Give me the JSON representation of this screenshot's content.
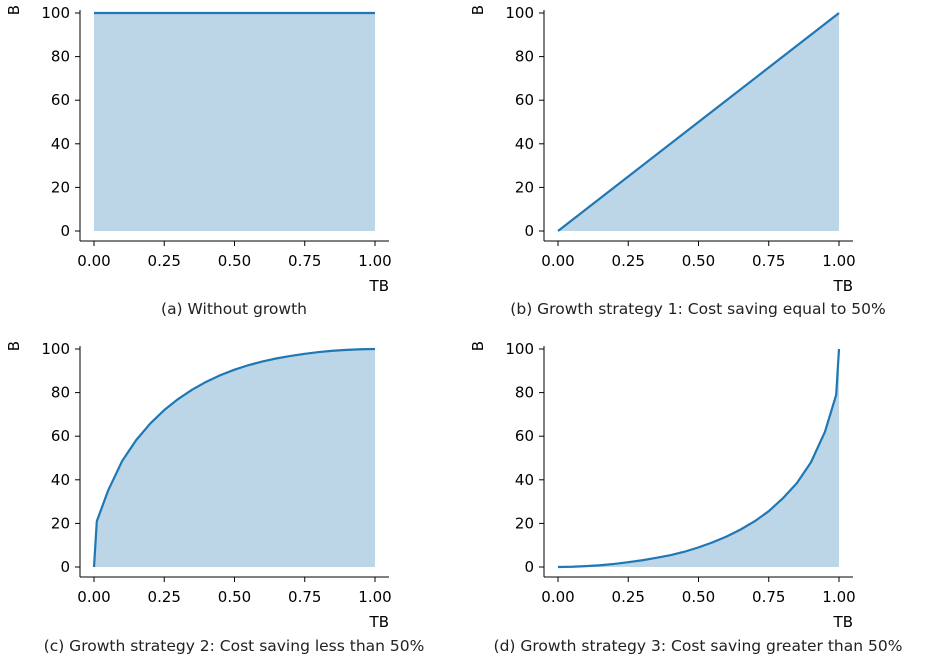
{
  "chart_data": [
    {
      "type": "area",
      "caption": "(a) Without growth",
      "xlabel": "TB",
      "ylabel": "B",
      "xlim": [
        0,
        1
      ],
      "ylim": [
        0,
        100
      ],
      "xticks": [
        "0.00",
        "0.25",
        "0.50",
        "0.75",
        "1.00"
      ],
      "yticks": [
        "0",
        "20",
        "40",
        "60",
        "80",
        "100"
      ],
      "x": [
        0.0,
        0.25,
        0.5,
        0.75,
        1.0
      ],
      "y": [
        100,
        100,
        100,
        100,
        100
      ]
    },
    {
      "type": "area",
      "caption": "(b) Growth strategy 1: Cost saving equal to 50%",
      "xlabel": "TB",
      "ylabel": "B",
      "xlim": [
        0,
        1
      ],
      "ylim": [
        0,
        100
      ],
      "xticks": [
        "0.00",
        "0.25",
        "0.50",
        "0.75",
        "1.00"
      ],
      "yticks": [
        "0",
        "20",
        "40",
        "60",
        "80",
        "100"
      ],
      "x": [
        0.0,
        0.25,
        0.5,
        0.75,
        1.0
      ],
      "y": [
        0,
        25,
        50,
        75,
        100
      ]
    },
    {
      "type": "area",
      "caption": "(c) Growth strategy 2: Cost saving less than 50%",
      "xlabel": "TB",
      "ylabel": "B",
      "xlim": [
        0,
        1
      ],
      "ylim": [
        0,
        100
      ],
      "xticks": [
        "0.00",
        "0.25",
        "0.50",
        "0.75",
        "1.00"
      ],
      "yticks": [
        "0",
        "20",
        "40",
        "60",
        "80",
        "100"
      ],
      "x": [
        0.0,
        0.01,
        0.05,
        0.1,
        0.15,
        0.2,
        0.25,
        0.3,
        0.35,
        0.4,
        0.45,
        0.5,
        0.55,
        0.6,
        0.65,
        0.7,
        0.75,
        0.8,
        0.85,
        0.9,
        0.95,
        1.0
      ],
      "y": [
        0,
        21,
        35,
        48.6,
        58.2,
        65.8,
        72,
        77.1,
        81.4,
        85,
        88,
        90.5,
        92.6,
        94.3,
        95.7,
        96.8,
        97.8,
        98.6,
        99.2,
        99.6,
        99.9,
        100
      ]
    },
    {
      "type": "area",
      "caption": "(d) Growth strategy 3: Cost saving greater than 50%",
      "xlabel": "TB",
      "ylabel": "B",
      "xlim": [
        0,
        1
      ],
      "ylim": [
        0,
        100
      ],
      "xticks": [
        "0.00",
        "0.25",
        "0.50",
        "0.75",
        "1.00"
      ],
      "yticks": [
        "0",
        "20",
        "40",
        "60",
        "80",
        "100"
      ],
      "x": [
        0.0,
        0.05,
        0.1,
        0.15,
        0.2,
        0.25,
        0.3,
        0.35,
        0.4,
        0.45,
        0.5,
        0.55,
        0.6,
        0.65,
        0.7,
        0.75,
        0.8,
        0.85,
        0.9,
        0.95,
        0.99,
        1.0
      ],
      "y": [
        0,
        0.1,
        0.4,
        0.8,
        1.4,
        2.2,
        3.1,
        4.2,
        5.4,
        7,
        9,
        11.3,
        14,
        17.2,
        21,
        25.6,
        31.5,
        38.5,
        48,
        62,
        79,
        100
      ]
    }
  ],
  "colors": {
    "line": "#1f77b4",
    "fill": "#bcd6e8",
    "axis": "#000000"
  }
}
